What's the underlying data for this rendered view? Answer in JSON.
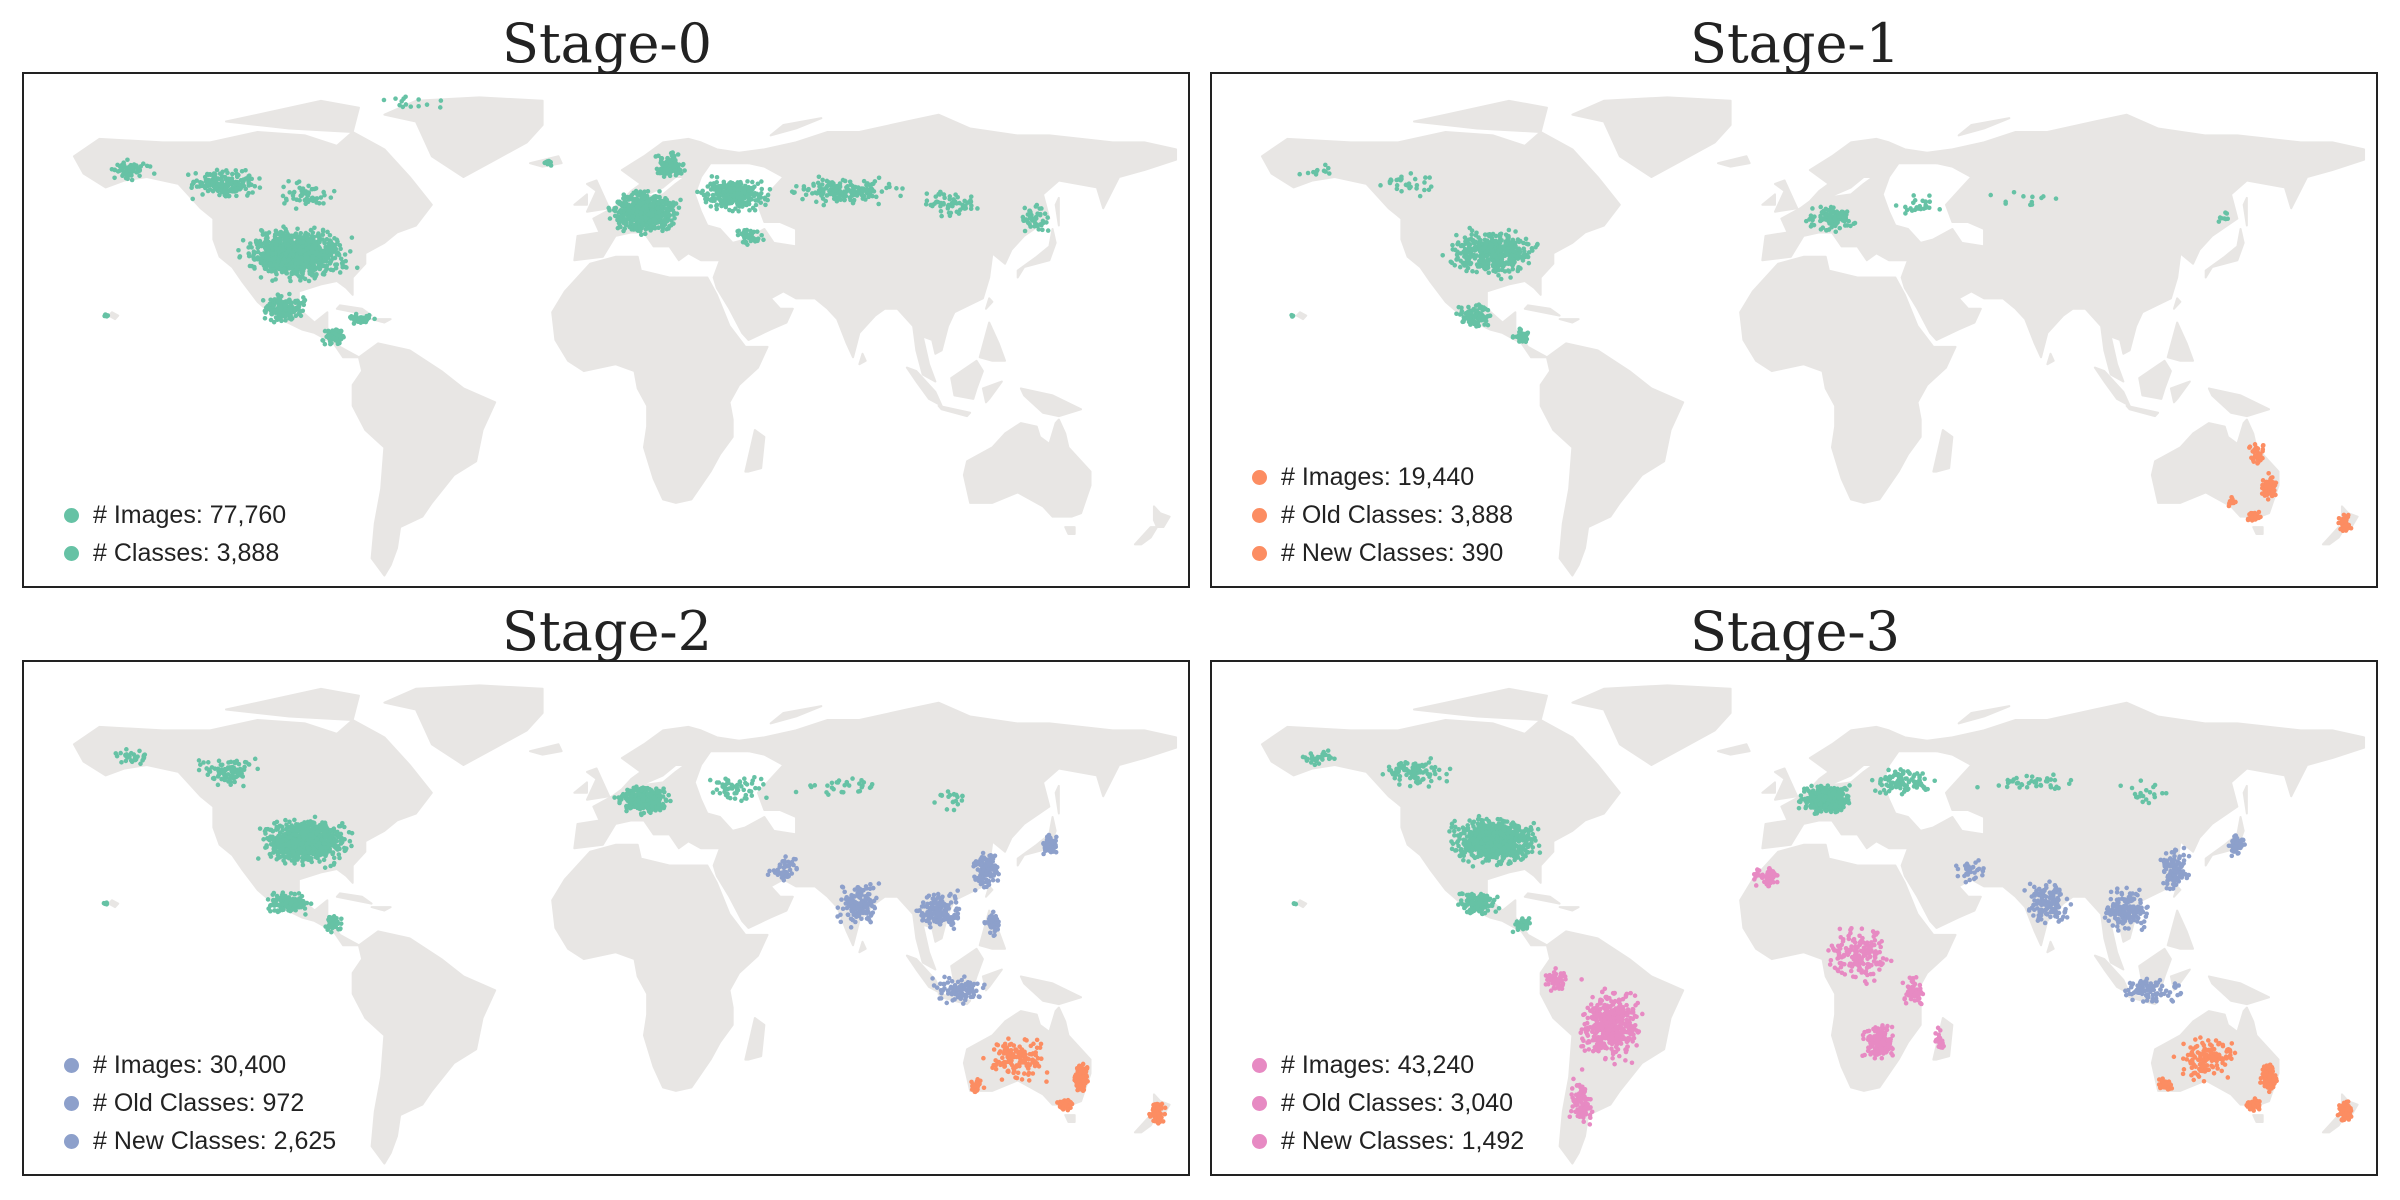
{
  "colors": {
    "land": "#e8e6e4",
    "stage0": "#66c2a5",
    "stage1": "#fc8d62",
    "stage2": "#8da0cb",
    "stage3": "#e78ac3"
  },
  "panels": [
    {
      "title": "Stage-0",
      "legend_color": "stage0",
      "legend": [
        "# Images: 77,760",
        "# Classes: 3,888"
      ]
    },
    {
      "title": "Stage-1",
      "legend_color": "stage1",
      "legend": [
        "# Images: 19,440",
        "# Old Classes: 3,888",
        "# New Classes: 390"
      ]
    },
    {
      "title": "Stage-2",
      "legend_color": "stage2",
      "legend": [
        "# Images: 30,400",
        "# Old Classes: 972",
        "# New Classes: 2,625"
      ]
    },
    {
      "title": "Stage-3",
      "legend_color": "stage3",
      "legend": [
        "# Images: 43,240",
        "# Old Classes: 3,040",
        "# New Classes: 1,492"
      ]
    }
  ]
}
